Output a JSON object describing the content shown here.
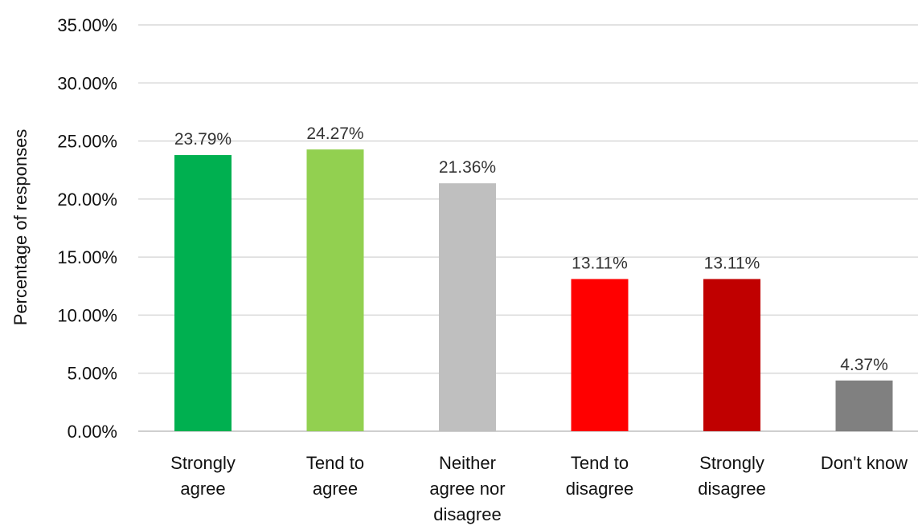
{
  "chart_data": {
    "type": "bar",
    "title": "",
    "xlabel": "",
    "ylabel": "Percentage of responses",
    "ylim": [
      0,
      35
    ],
    "yticks": [
      0,
      5,
      10,
      15,
      20,
      25,
      30,
      35
    ],
    "ytick_labels": [
      "0.00%",
      "5.00%",
      "10.00%",
      "15.00%",
      "20.00%",
      "25.00%",
      "30.00%",
      "35.00%"
    ],
    "grid": true,
    "legend": "none",
    "categories": [
      [
        "Strongly",
        "agree"
      ],
      [
        "Tend to",
        "agree"
      ],
      [
        "Neither",
        "agree nor",
        "disagree"
      ],
      [
        "Tend to",
        "disagree"
      ],
      [
        "Strongly",
        "disagree"
      ],
      [
        "Don't know"
      ]
    ],
    "values": [
      23.79,
      24.27,
      21.36,
      13.11,
      13.11,
      4.37
    ],
    "value_labels": [
      "23.79%",
      "24.27%",
      "21.36%",
      "13.11%",
      "13.11%",
      "4.37%"
    ],
    "colors": [
      "#00b050",
      "#92d050",
      "#bfbfbf",
      "#ff0000",
      "#c00000",
      "#808080"
    ]
  }
}
